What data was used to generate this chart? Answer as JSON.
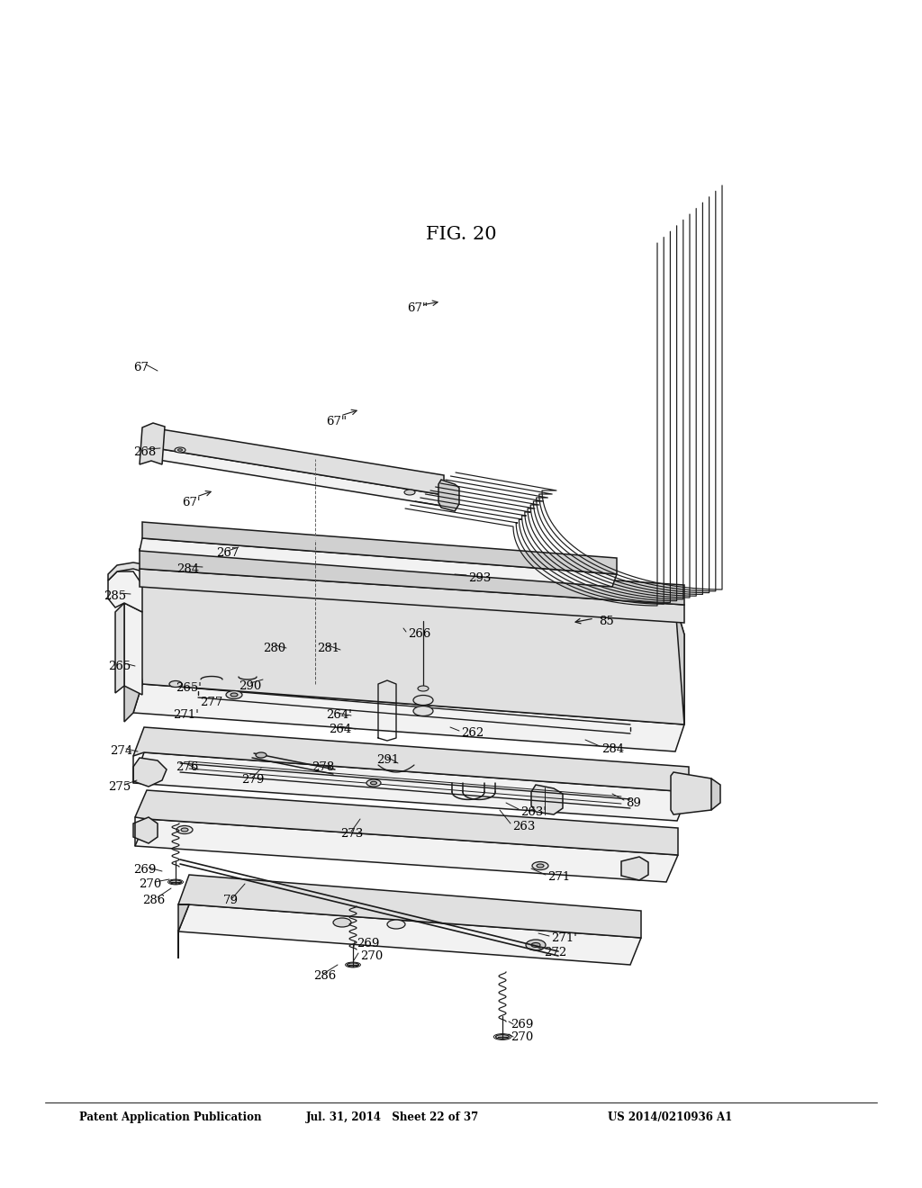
{
  "bg_color": "#ffffff",
  "header_left": "Patent Application Publication",
  "header_mid": "Jul. 31, 2014   Sheet 22 of 37",
  "header_right": "US 2014/0210936 A1",
  "figure_label": "FIG. 20",
  "line_color": "#1a1a1a",
  "line_width": 1.1
}
